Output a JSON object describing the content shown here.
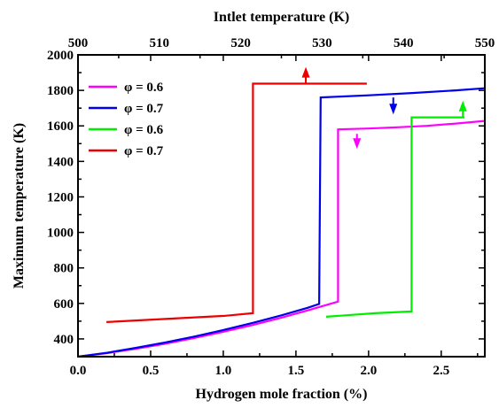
{
  "chart_data": {
    "type": "line",
    "xlabel": "Hydrogen mole fraction (%)",
    "x2label": "Intlet temperature (K)",
    "ylabel": "Maximum temperature (K)",
    "xlim": [
      0.0,
      2.8
    ],
    "x2lim": [
      500,
      550
    ],
    "ylim": [
      300,
      2000
    ],
    "x_ticks": [
      "0.0",
      "0.5",
      "1.0",
      "1.5",
      "2.0",
      "2.5"
    ],
    "x2_ticks": [
      "500",
      "510",
      "520",
      "530",
      "540",
      "550"
    ],
    "y_ticks": [
      "400",
      "600",
      "800",
      "1000",
      "1200",
      "1400",
      "1600",
      "1800",
      "2000"
    ],
    "legend_placement": "top-left",
    "grid": false,
    "series": [
      {
        "name": "φ = 0.6",
        "axis": "bottom",
        "color": "#ff00ff",
        "points": [
          [
            0.0,
            300
          ],
          [
            0.2,
            320
          ],
          [
            0.4,
            345
          ],
          [
            0.6,
            373
          ],
          [
            0.8,
            405
          ],
          [
            1.0,
            440
          ],
          [
            1.2,
            478
          ],
          [
            1.4,
            520
          ],
          [
            1.6,
            565
          ],
          [
            1.79,
            610
          ],
          [
            1.79,
            1580
          ],
          [
            2.0,
            1585
          ],
          [
            2.2,
            1592
          ],
          [
            2.4,
            1600
          ],
          [
            2.6,
            1613
          ],
          [
            2.8,
            1628
          ]
        ]
      },
      {
        "name": "φ = 0.7",
        "axis": "bottom",
        "color": "#0000ee",
        "points": [
          [
            0.0,
            300
          ],
          [
            0.2,
            322
          ],
          [
            0.4,
            350
          ],
          [
            0.6,
            380
          ],
          [
            0.8,
            413
          ],
          [
            1.0,
            450
          ],
          [
            1.2,
            490
          ],
          [
            1.4,
            533
          ],
          [
            1.58,
            575
          ],
          [
            1.66,
            597
          ],
          [
            1.67,
            1760
          ],
          [
            2.0,
            1772
          ],
          [
            2.3,
            1785
          ],
          [
            2.6,
            1800
          ],
          [
            2.8,
            1812
          ]
        ]
      },
      {
        "name": "φ = 0.6",
        "axis": "top",
        "color": "#00ee00",
        "points": [
          [
            530.5,
            525
          ],
          [
            536.5,
            545
          ],
          [
            541.0,
            555
          ],
          [
            541.0,
            1648
          ],
          [
            547.5,
            1648
          ]
        ]
      },
      {
        "name": "φ = 0.7",
        "axis": "top",
        "color": "#ee0000",
        "points": [
          [
            503.5,
            495
          ],
          [
            518.0,
            530
          ],
          [
            521.5,
            545
          ],
          [
            521.5,
            1838
          ],
          [
            535.5,
            1838
          ]
        ]
      }
    ],
    "arrows": [
      {
        "axis": "bottom",
        "x": 1.92,
        "from": 1555,
        "to": 1470,
        "color": "#ff00ff"
      },
      {
        "axis": "bottom",
        "x": 2.17,
        "from": 1760,
        "to": 1665,
        "color": "#0000ee"
      },
      {
        "axis": "top",
        "x": 547.3,
        "from": 1648,
        "to": 1742,
        "color": "#00ee00"
      },
      {
        "axis": "top",
        "x": 528.0,
        "from": 1838,
        "to": 1932,
        "color": "#ee0000"
      }
    ]
  }
}
